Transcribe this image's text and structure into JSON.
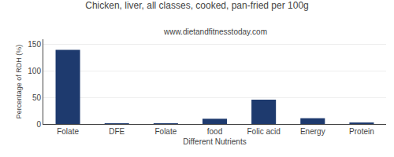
{
  "chart_data": {
    "type": "bar",
    "title": "Chicken, liver, all classes, cooked, pan-fried per 100g",
    "subtitle": "www.dietandfitnesstoday.com",
    "xlabel": "Different Nutrients",
    "ylabel": "Percentage of RDH (%)",
    "categories": [
      "Folate",
      "DFE",
      "Folate",
      "food",
      "Folic acid",
      "Energy",
      "Protein"
    ],
    "values": [
      140,
      0.5,
      0.5,
      10,
      46,
      11,
      1.5
    ],
    "color": "#1e3a6e",
    "ylim": [
      0,
      160
    ],
    "yticks": [
      0,
      50,
      100,
      150
    ],
    "grid": true
  }
}
